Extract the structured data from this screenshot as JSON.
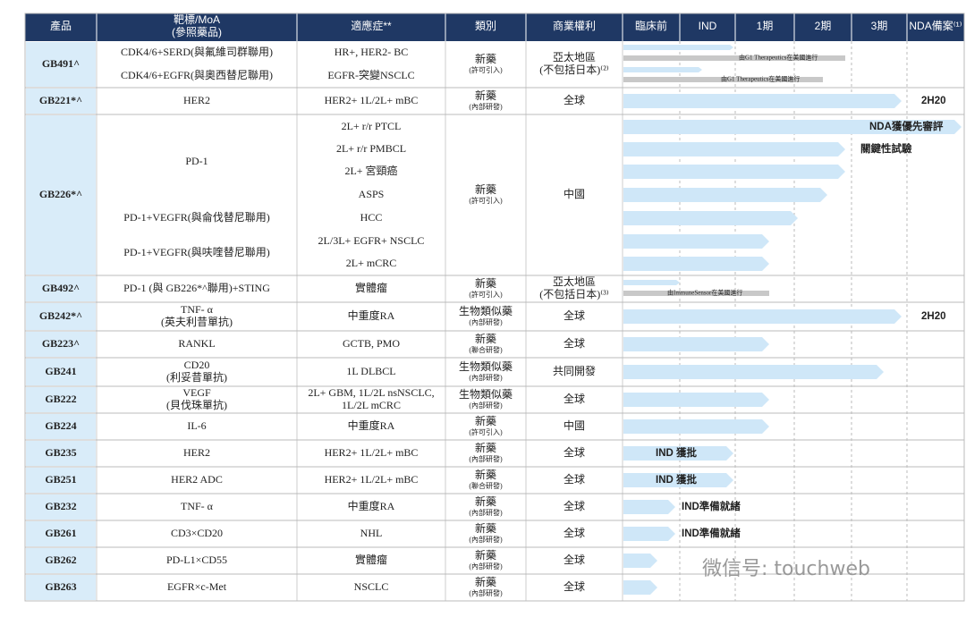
{
  "header": [
    [
      "產品"
    ],
    [
      "靶標/MoA",
      "(參照藥品)"
    ],
    [
      "適應症**"
    ],
    [
      "類別"
    ],
    [
      "商業權利"
    ],
    [
      "臨床前"
    ],
    [
      "IND"
    ],
    [
      "1期"
    ],
    [
      "2期"
    ],
    [
      "3期"
    ],
    [
      "NDA備案⁽¹⁾"
    ]
  ],
  "rows": [
    {
      "product": "GB491^",
      "targets": [
        "CDK4/6+SERD(與氟維司群聯用)",
        "CDK4/6+EGFR(與奧西替尼聯用)"
      ],
      "indications": [
        "HR+, HER2- BC",
        "EGFR-突變NSCLC"
      ],
      "category": [
        "新藥",
        "(許可引入)"
      ],
      "rights": [
        "亞太地區",
        "(不包括日本)⁽²⁾"
      ],
      "annotations": [
        "由G1 Therapeutics在美國進行",
        "由G1 Therapeutics在美國進行"
      ]
    },
    {
      "product": "GB221*^",
      "targets": [
        "HER2"
      ],
      "indications": [
        "HER2+ 1L/2L+ mBC"
      ],
      "category": [
        "新藥",
        "(內部研發)"
      ],
      "rights": [
        "全球"
      ],
      "annotations": [
        "2H20"
      ]
    },
    {
      "product": "GB226*^",
      "targets": [
        "PD-1",
        "PD-1+VEGFR(與侖伐替尼聯用)",
        "PD-1+VEGFR(與呋喹替尼聯用)"
      ],
      "indications": [
        "2L+ r/r PTCL",
        "2L+ r/r PMBCL",
        "2L+ 宮頸癌",
        "ASPS",
        "HCC",
        "2L/3L+ EGFR+ NSCLC",
        "2L+ mCRC"
      ],
      "category": [
        "新藥",
        "(許可引入)"
      ],
      "rights": [
        "中國"
      ],
      "annotations": [
        "NDA獲優先審評",
        "關鍵性試驗"
      ]
    },
    {
      "product": "GB492^",
      "targets": [
        "PD-1 (與 GB226*^聯用)+STING"
      ],
      "indications": [
        "實體瘤"
      ],
      "category": [
        "新藥",
        "(許可引入)"
      ],
      "rights": [
        "亞太地區",
        "(不包括日本)⁽³⁾"
      ],
      "annotations": [
        "由ImmuneSensor在美國進行"
      ]
    },
    {
      "product": "GB242*^",
      "targets": [
        "TNF- α",
        "(英夫利昔單抗)"
      ],
      "indications": [
        "中重度RA"
      ],
      "category": [
        "生物類似藥",
        "(內部研發)"
      ],
      "rights": [
        "全球"
      ],
      "annotations": [
        "2H20"
      ]
    },
    {
      "product": "GB223^",
      "targets": [
        "RANKL"
      ],
      "indications": [
        "GCTB, PMO"
      ],
      "category": [
        "新藥",
        "(聯合研發)"
      ],
      "rights": [
        "全球"
      ]
    },
    {
      "product": "GB241",
      "targets": [
        "CD20",
        "(利妥昔單抗)"
      ],
      "indications": [
        "1L DLBCL"
      ],
      "category": [
        "生物類似藥",
        "(內部研發)"
      ],
      "rights": [
        "共同開發"
      ]
    },
    {
      "product": "GB222",
      "targets": [
        "VEGF",
        "(貝伐珠單抗)"
      ],
      "indications": [
        "2L+ GBM, 1L/2L nsNSCLC,",
        "1L/2L mCRC"
      ],
      "category": [
        "生物類似藥",
        "(內部研發)"
      ],
      "rights": [
        "全球"
      ]
    },
    {
      "product": "GB224",
      "targets": [
        "IL-6"
      ],
      "indications": [
        "中重度RA"
      ],
      "category": [
        "新藥",
        "(許可引入)"
      ],
      "rights": [
        "中國"
      ]
    },
    {
      "product": "GB235",
      "targets": [
        "HER2"
      ],
      "indications": [
        "HER2+ 1L/2L+ mBC"
      ],
      "category": [
        "新藥",
        "(內部研發)"
      ],
      "rights": [
        "全球"
      ],
      "annotations": [
        "IND 獲批"
      ]
    },
    {
      "product": "GB251",
      "targets": [
        "HER2 ADC"
      ],
      "indications": [
        "HER2+ 1L/2L+ mBC"
      ],
      "category": [
        "新藥",
        "(聯合研發)"
      ],
      "rights": [
        "全球"
      ],
      "annotations": [
        "IND 獲批"
      ]
    },
    {
      "product": "GB232",
      "targets": [
        "TNF- α"
      ],
      "indications": [
        "中重度RA"
      ],
      "category": [
        "新藥",
        "(內部研發)"
      ],
      "rights": [
        "全球"
      ],
      "annotations": [
        "IND準備就緒"
      ]
    },
    {
      "product": "GB261",
      "targets": [
        "CD3×CD20"
      ],
      "indications": [
        "NHL"
      ],
      "category": [
        "新藥",
        "(內部研發)"
      ],
      "rights": [
        "全球"
      ],
      "annotations": [
        "IND準備就緒"
      ]
    },
    {
      "product": "GB262",
      "targets": [
        "PD-L1×CD55"
      ],
      "indications": [
        "實體瘤"
      ],
      "category": [
        "新藥",
        "(內部研發)"
      ],
      "rights": [
        "全球"
      ]
    },
    {
      "product": "GB263",
      "targets": [
        "EGFR×c-Met"
      ],
      "indications": [
        "NSCLC"
      ],
      "category": [
        "新藥",
        "(內部研發)"
      ],
      "rights": [
        "全球"
      ]
    }
  ],
  "watermark": "微信号: touchweb"
}
